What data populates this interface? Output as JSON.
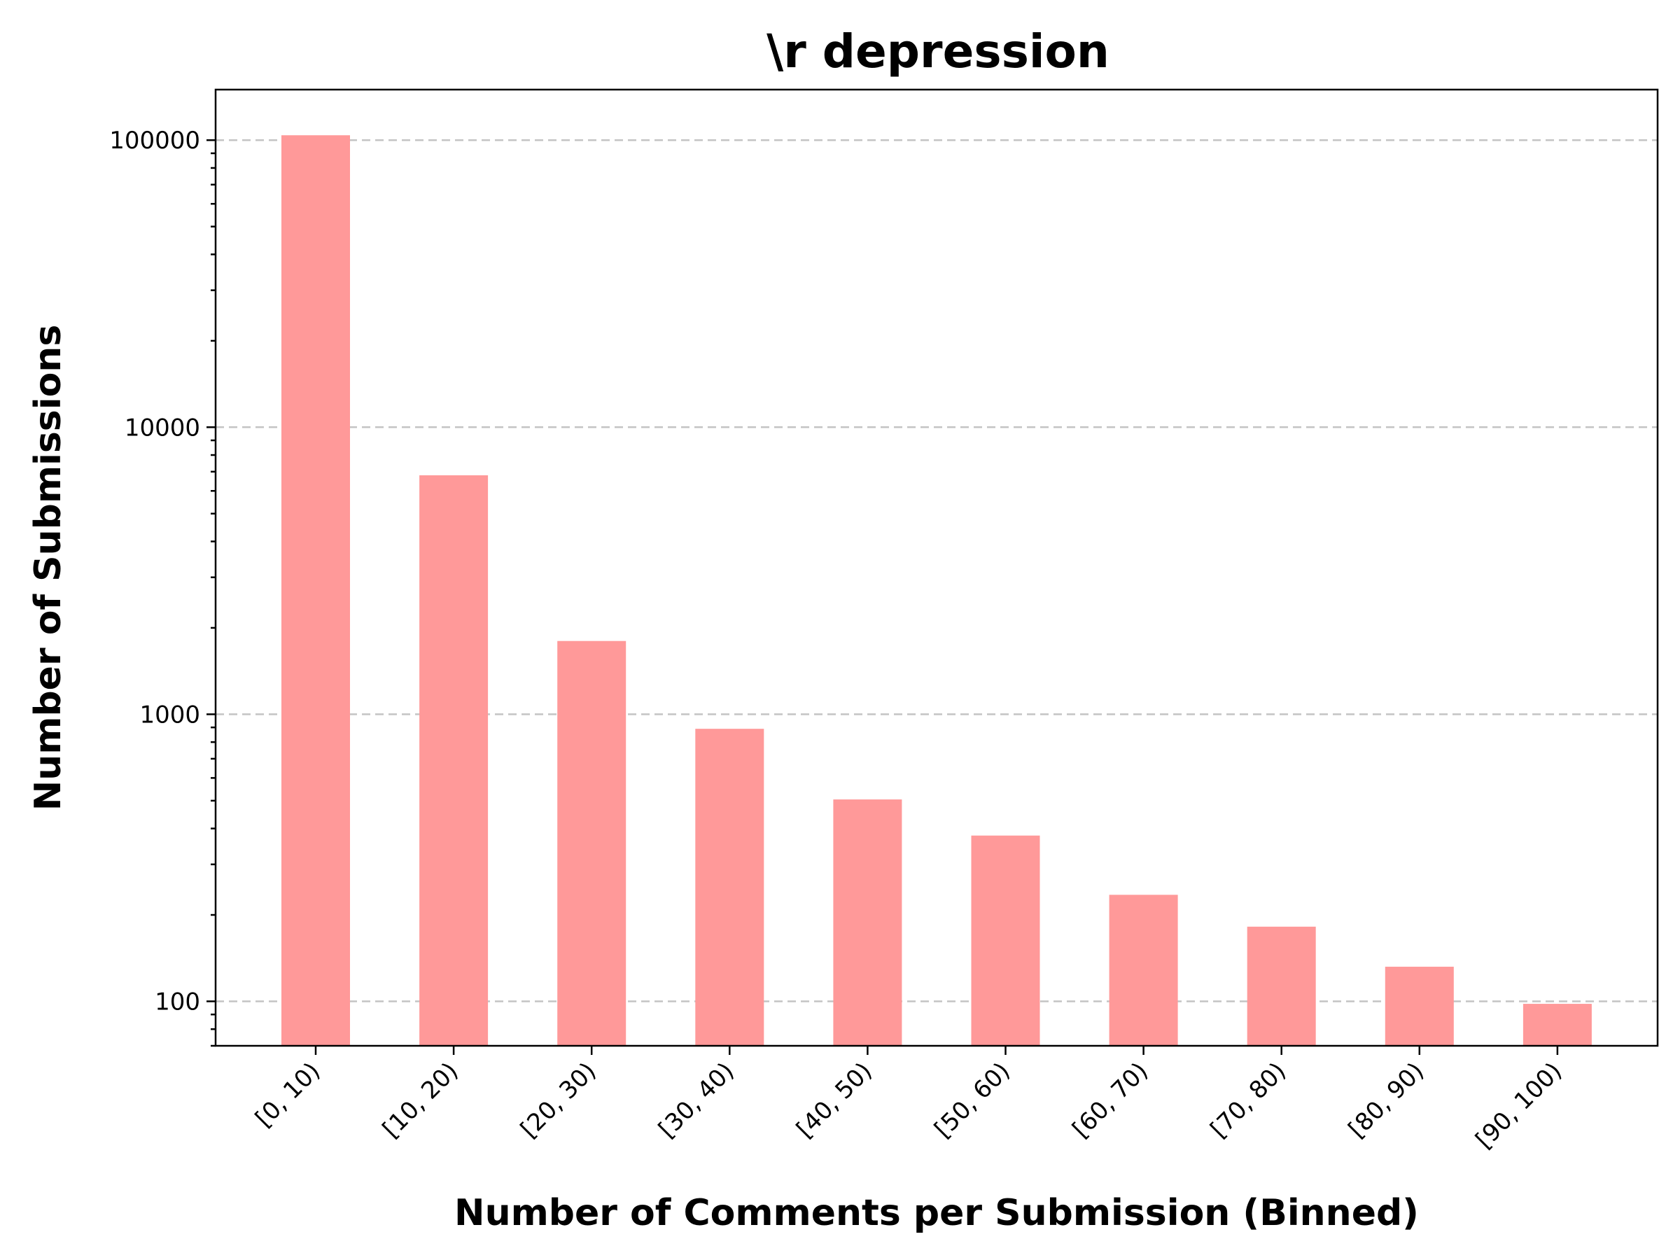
{
  "chart_data": {
    "type": "bar",
    "title": "\\r depression",
    "xlabel": "Number of Comments per Submission (Binned)",
    "ylabel": "Number of Submissions",
    "y_scale": "log",
    "ylim": [
      70,
      150000
    ],
    "grid": "y-dashed",
    "categories": [
      "[0, 10)",
      "[10, 20)",
      "[20, 30)",
      "[30, 40)",
      "[40, 50)",
      "[50, 60)",
      "[60, 70)",
      "[70, 80)",
      "[80, 90)",
      "[90, 100)"
    ],
    "values": [
      104000,
      6800,
      1800,
      890,
      505,
      378,
      235,
      182,
      132,
      98
    ],
    "y_ticks": [
      {
        "value": 100,
        "label": "100"
      },
      {
        "value": 1000,
        "label": "1000"
      },
      {
        "value": 10000,
        "label": "10000"
      },
      {
        "value": 100000,
        "label": "100000"
      }
    ],
    "bar_color": "#ff9999"
  }
}
